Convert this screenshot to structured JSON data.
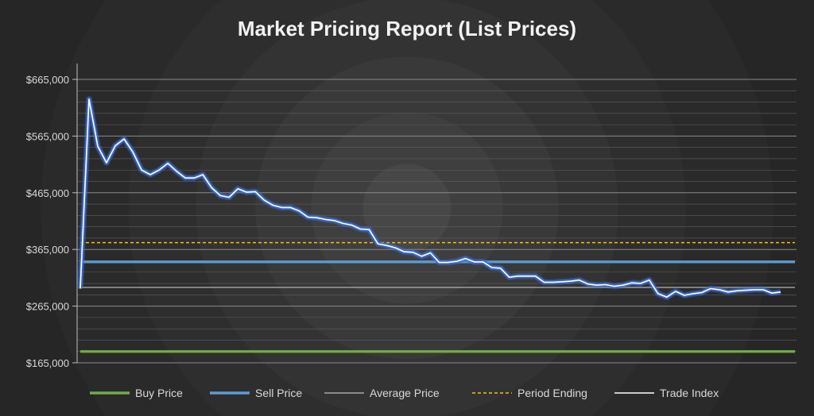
{
  "chart_data": {
    "type": "line",
    "title": "Market Pricing Report (List Prices)",
    "xlabel": "",
    "ylabel": "",
    "ylim": [
      165000,
      665000
    ],
    "yticks": [
      165000,
      265000,
      365000,
      465000,
      565000,
      665000
    ],
    "ytick_labels": [
      "$165,000",
      "$265,000",
      "$365,000",
      "$465,000",
      "$565,000",
      "$665,000"
    ],
    "grid": true,
    "legend_position": "bottom",
    "series": [
      {
        "name": "Trade Index",
        "color": "#ffffff",
        "glow_color": "#3b6fd8",
        "values": [
          296000,
          630000,
          547000,
          518000,
          548000,
          560000,
          537000,
          505000,
          497000,
          505000,
          517000,
          503000,
          491000,
          491000,
          497000,
          474000,
          460000,
          457000,
          472000,
          466000,
          467000,
          452000,
          443000,
          439000,
          439000,
          433000,
          422000,
          421000,
          418000,
          416000,
          411000,
          408000,
          401000,
          400000,
          375000,
          372000,
          368000,
          361000,
          360000,
          353000,
          359000,
          342000,
          342000,
          344000,
          349000,
          343000,
          343000,
          333000,
          332000,
          316000,
          318000,
          318000,
          318000,
          307000,
          307000,
          308000,
          309000,
          311000,
          304000,
          302000,
          303000,
          300000,
          302000,
          306000,
          305000,
          311000,
          287000,
          281000,
          291000,
          284000,
          287000,
          289000,
          296000,
          294000,
          290000,
          292000,
          293000,
          294000,
          294000,
          288000,
          290000
        ]
      },
      {
        "name": "Buy Price",
        "color": "#71ad47",
        "dashed": false,
        "constant": 185000
      },
      {
        "name": "Sell Price",
        "color": "#5b9bd5",
        "dashed": false,
        "constant": 343000
      },
      {
        "name": "Average Price",
        "color": "#a6a6a6",
        "dashed": false,
        "constant": 298000
      },
      {
        "name": "Period Ending",
        "color": "#ffc000",
        "dashed": true,
        "constant": 377000
      }
    ],
    "legend": [
      "Buy Price",
      "Sell Price",
      "Average Price",
      "Period Ending",
      "Trade Index"
    ]
  }
}
